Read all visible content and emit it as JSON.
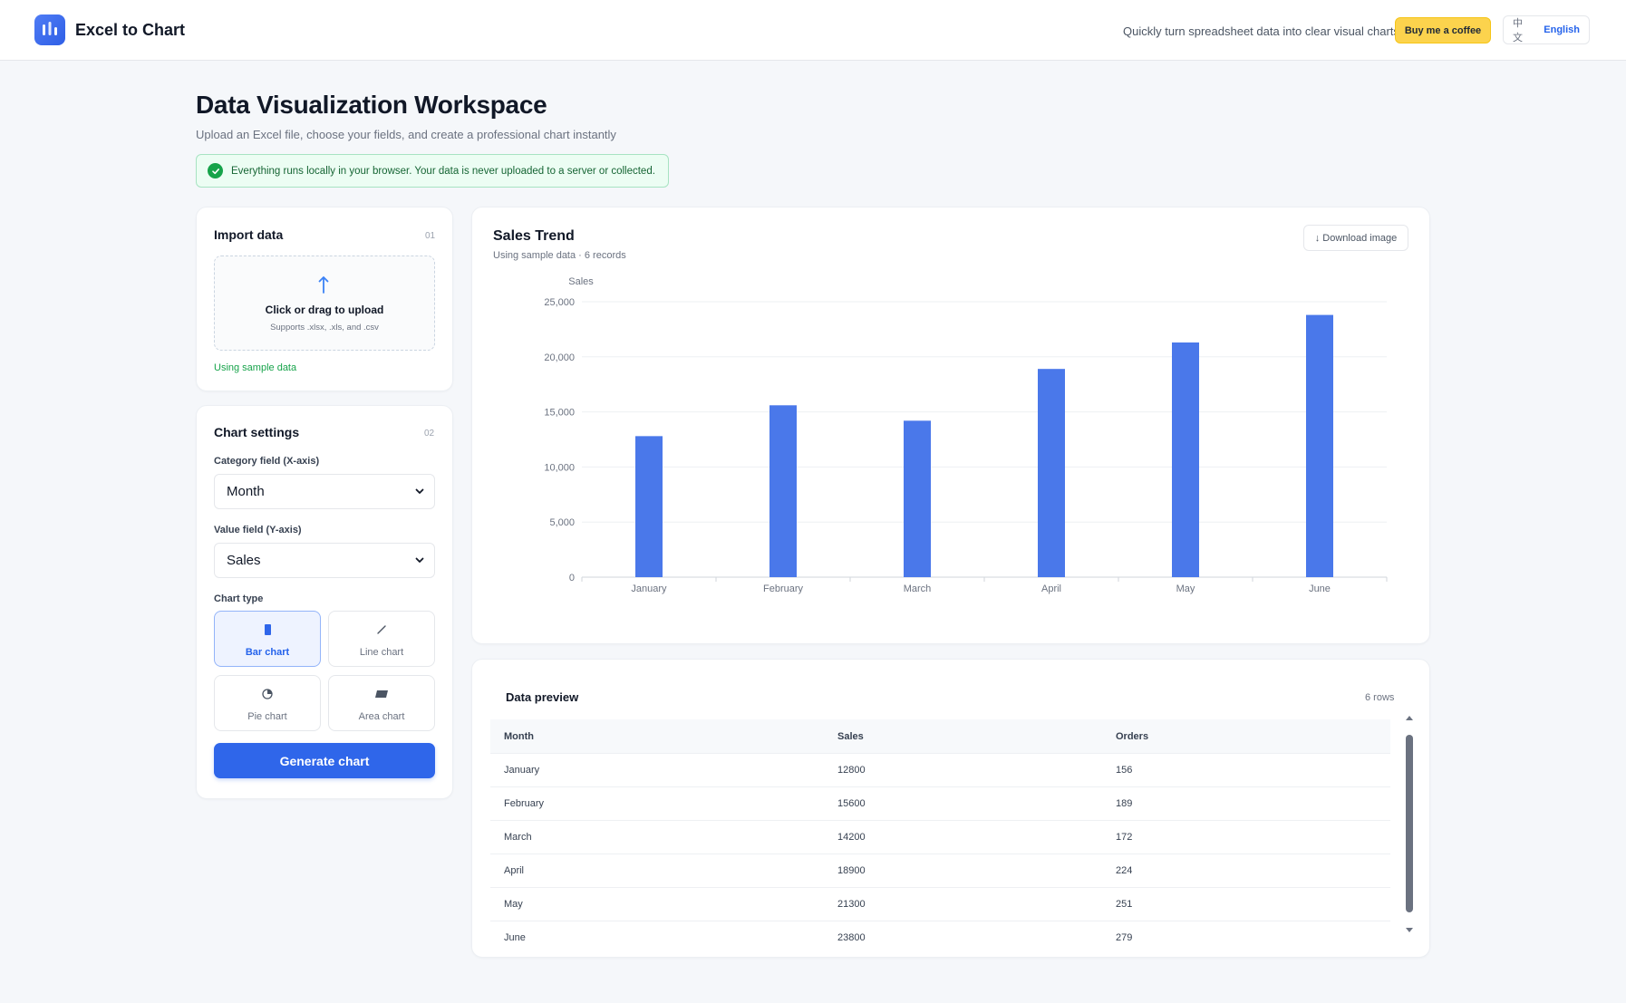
{
  "header": {
    "brand": "Excel to Chart",
    "tagline": "Quickly turn spreadsheet data into clear visual charts",
    "coffee_label": "Buy me a coffee",
    "lang_zh": "中文",
    "lang_en": "English",
    "active_lang": "English"
  },
  "page": {
    "title": "Data Visualization Workspace",
    "subtitle": "Upload an Excel file, choose your fields, and create a professional chart instantly",
    "notice": "Everything runs locally in your browser. Your data is never uploaded to a server or collected."
  },
  "import_card": {
    "title": "Import data",
    "step": "01",
    "upload_title": "Click or drag to upload",
    "upload_hint": "Supports .xlsx, .xls, and .csv",
    "status": "Using sample data"
  },
  "settings_card": {
    "title": "Chart settings",
    "step": "02",
    "category_label": "Category field (X-axis)",
    "category_value": "Month",
    "value_label": "Value field (Y-axis)",
    "value_value": "Sales",
    "chart_type_label": "Chart type",
    "chart_types": [
      {
        "label": "Bar chart",
        "icon": "bar-chart-icon",
        "active": true
      },
      {
        "label": "Line chart",
        "icon": "line-chart-icon",
        "active": false
      },
      {
        "label": "Pie chart",
        "icon": "pie-chart-icon",
        "active": false
      },
      {
        "label": "Area chart",
        "icon": "area-chart-icon",
        "active": false
      }
    ],
    "generate_label": "Generate chart"
  },
  "chart_card": {
    "title": "Sales Trend",
    "subtitle": "Using sample data · 6 records",
    "download_label": "↓ Download image"
  },
  "chart_data": {
    "type": "bar",
    "title": "Sales Trend",
    "xlabel": "",
    "ylabel": "Sales",
    "categories": [
      "January",
      "February",
      "March",
      "April",
      "May",
      "June"
    ],
    "values": [
      12800,
      15600,
      14200,
      18900,
      21300,
      23800
    ],
    "ylim": [
      0,
      25000
    ],
    "yticks": [
      0,
      5000,
      10000,
      15000,
      20000,
      25000
    ],
    "ytick_labels": [
      "0",
      "5,000",
      "10,000",
      "15,000",
      "20,000",
      "25,000"
    ],
    "bar_color": "#4a78ea",
    "grid": true,
    "legend": "none"
  },
  "table_card": {
    "title": "Data preview",
    "row_count": "6 rows",
    "columns": [
      "Month",
      "Sales",
      "Orders"
    ],
    "rows": [
      [
        "January",
        "12800",
        "156"
      ],
      [
        "February",
        "15600",
        "189"
      ],
      [
        "March",
        "14200",
        "172"
      ],
      [
        "April",
        "18900",
        "224"
      ],
      [
        "May",
        "21300",
        "251"
      ],
      [
        "June",
        "23800",
        "279"
      ]
    ]
  },
  "colors": {
    "accent": "#2f66ea",
    "success": "#16a34a",
    "coffee": "#fcd34d"
  }
}
